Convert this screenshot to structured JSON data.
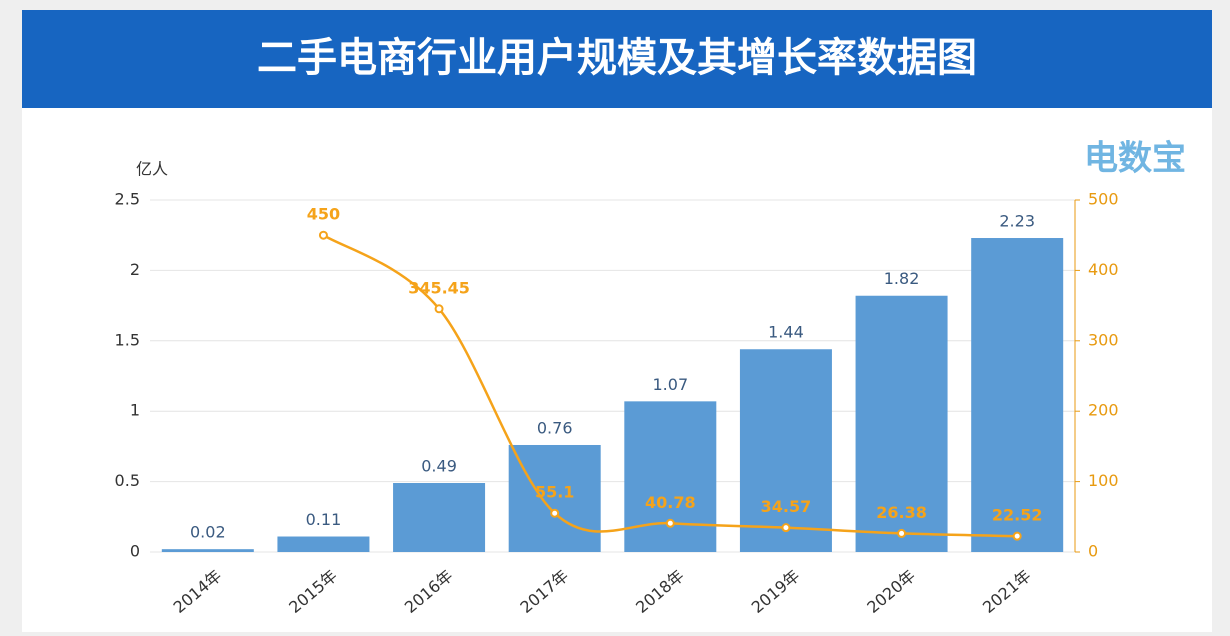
{
  "chart_data": {
    "type": "bar-line",
    "title": "二手电商行业用户规模及其增长率数据图",
    "watermark": "电数宝",
    "y_label": "亿人",
    "categories": [
      "2014年",
      "2015年",
      "2016年",
      "2017年",
      "2018年",
      "2019年",
      "2020年",
      "2021年"
    ],
    "series": [
      {
        "type": "bar",
        "color": "#5b9bd5",
        "values": [
          0.02,
          0.11,
          0.49,
          0.76,
          1.07,
          1.44,
          1.82,
          2.23
        ]
      },
      {
        "type": "line",
        "axis": "y2",
        "color": "#f5a31a",
        "values": [
          null,
          450,
          345.45,
          55.1,
          40.78,
          34.57,
          26.38,
          22.52
        ]
      }
    ],
    "ylim": [
      0,
      2.5
    ],
    "yticks": [
      0,
      0.5,
      1,
      1.5,
      2,
      2.5
    ],
    "y2lim": [
      0,
      500
    ],
    "y2ticks": [
      0,
      100,
      200,
      300,
      400,
      500
    ],
    "grid": true
  }
}
